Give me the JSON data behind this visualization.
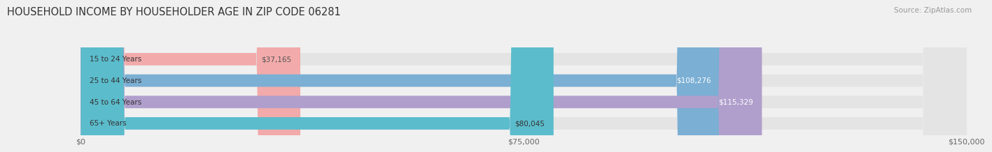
{
  "title": "HOUSEHOLD INCOME BY HOUSEHOLDER AGE IN ZIP CODE 06281",
  "source": "Source: ZipAtlas.com",
  "categories": [
    "15 to 24 Years",
    "25 to 44 Years",
    "45 to 64 Years",
    "65+ Years"
  ],
  "values": [
    37165,
    108276,
    115329,
    80045
  ],
  "bar_colors": [
    "#f2aaaa",
    "#7bafd4",
    "#b09fcc",
    "#5bbccc"
  ],
  "bar_label_colors": [
    "#555555",
    "#ffffff",
    "#ffffff",
    "#333333"
  ],
  "value_labels": [
    "$37,165",
    "$108,276",
    "$115,329",
    "$80,045"
  ],
  "xlim": [
    0,
    150000
  ],
  "xticks": [
    0,
    75000,
    150000
  ],
  "xtick_labels": [
    "$0",
    "$75,000",
    "$150,000"
  ],
  "background_color": "#f0f0f0",
  "bar_background_color": "#e4e4e4",
  "title_fontsize": 10.5,
  "source_fontsize": 7.5,
  "label_fontsize": 7.5,
  "tick_fontsize": 8,
  "bar_height": 0.58,
  "fig_width": 14.06,
  "fig_height": 2.33
}
